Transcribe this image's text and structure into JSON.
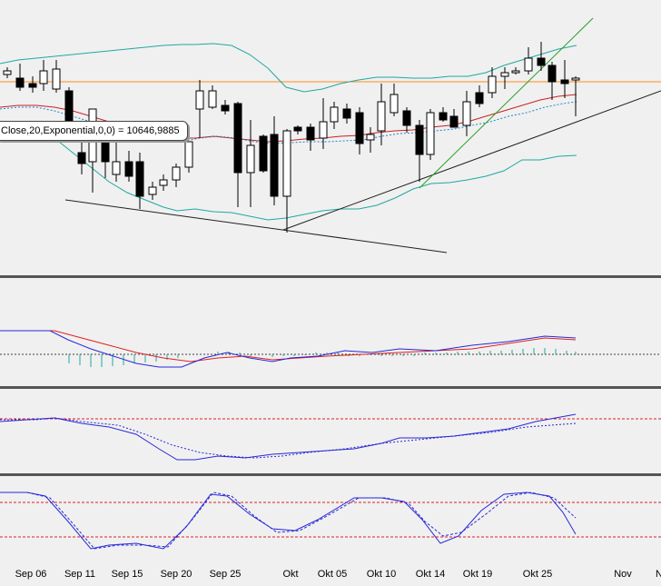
{
  "tooltip": {
    "text": "Close,20,Exponential,0,0) = 10646,9885"
  },
  "colors": {
    "background": "#f0f0f0",
    "bollinger": "#20a8a0",
    "ema": "#cc2020",
    "ema_signal": "#1c86c8",
    "hline": "#ff8c1a",
    "trendline": "#202020",
    "trendline_green": "#28a028",
    "indicator_main": "#2828d8",
    "indicator_signal": "#e02020",
    "divider": "#555555"
  },
  "chart_data": [
    {
      "type": "candlestick",
      "title": "",
      "x_ticks": [
        "Sep 06",
        "Sep 11",
        "Sep 15",
        "Sep 20",
        "Sep 25",
        "Okt",
        "Okt 05",
        "Okt 10",
        "Okt 14",
        "Okt 19",
        "Okt 25",
        "Nov",
        "N"
      ],
      "series_note": "OHLC candles with Bollinger bands, 20-period exponential moving average",
      "ema_last_value": 10646.9885
    },
    {
      "type": "line",
      "name_visible": "",
      "series": [
        "macd",
        "signal",
        "histogram"
      ],
      "reference_line": 0
    },
    {
      "type": "line",
      "series": [
        "main",
        "signal"
      ],
      "reference_line": "upper"
    },
    {
      "type": "line",
      "series": [
        "stoch_k",
        "stoch_d"
      ],
      "reference_lines": [
        "upper",
        "lower"
      ]
    }
  ]
}
